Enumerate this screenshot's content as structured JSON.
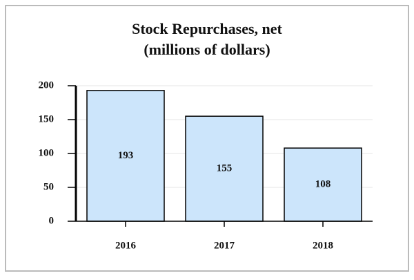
{
  "chart_data": {
    "type": "bar",
    "title": "Stock Repurchases, net",
    "subtitle": "(millions of dollars)",
    "categories": [
      "2016",
      "2017",
      "2018"
    ],
    "values": [
      193,
      155,
      108
    ],
    "color": "#cce5fb",
    "ylim": [
      0,
      200
    ],
    "yticks": [
      0,
      50,
      100,
      150,
      200
    ],
    "grid": true
  }
}
